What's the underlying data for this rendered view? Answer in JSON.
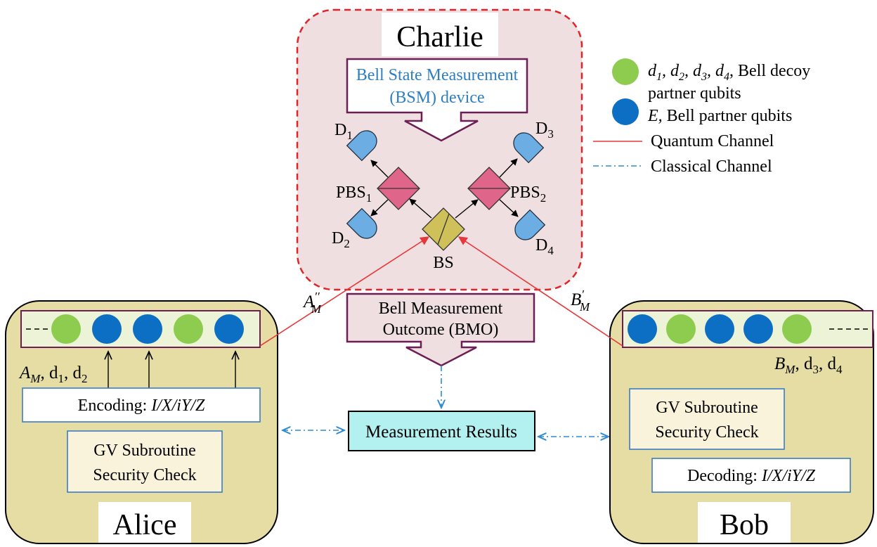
{
  "charlie": {
    "name": "Charlie",
    "bsm_line1": "Bell State Measurement",
    "bsm_line2": "(BSM) device",
    "det1": "D",
    "det1_sub": "1",
    "det2": "D",
    "det2_sub": "2",
    "det3": "D",
    "det3_sub": "3",
    "det4": "D",
    "det4_sub": "4",
    "pbs1": "PBS",
    "pbs1_sub": "1",
    "pbs2": "PBS",
    "pbs2_sub": "2",
    "bs": "BS"
  },
  "bmo": {
    "line1": "Bell Measurement",
    "line2": "Outcome (BMO)"
  },
  "results": {
    "label": "Measurement Results"
  },
  "alice": {
    "name": "Alice",
    "channel_label": "A",
    "channel_sup": "′′",
    "channel_sub": "M",
    "qubits_label_a": "A",
    "qubits_label_a_sub": "M",
    "qubits_label_rest1": ", d",
    "qubits_label_rest1_sub": "1",
    "qubits_label_rest2": ", d",
    "qubits_label_rest2_sub": "2",
    "encoding_prefix": "Encoding: ",
    "encoding_ops": "I/X/iY/Z",
    "gv_line1": "GV Subroutine",
    "gv_line2": "Security Check",
    "qubits": [
      "green",
      "blue",
      "blue",
      "green",
      "blue"
    ]
  },
  "bob": {
    "name": "Bob",
    "channel_label": "B",
    "channel_sup": "′",
    "channel_sub": "M",
    "qubits_label_b": "B",
    "qubits_label_b_sub": "M",
    "qubits_label_rest1": ", d",
    "qubits_label_rest1_sub": "3",
    "qubits_label_rest2": ", d",
    "qubits_label_rest2_sub": "4",
    "decoding_prefix": "Decoding: ",
    "decoding_ops": "I/X/iY/Z",
    "gv_line1": "GV Subroutine",
    "gv_line2": "Security Check",
    "qubits": [
      "blue",
      "green",
      "blue",
      "blue",
      "green"
    ]
  },
  "legend": {
    "green_line1_d1": "d",
    "green_line1_d1_sub": "1",
    "green_line1_d2": ", d",
    "green_line1_d2_sub": "2",
    "green_line1_d3": ", d",
    "green_line1_d3_sub": "3",
    "green_line1_d4": ", d",
    "green_line1_d4_sub": "4",
    "green_line1_rest": ", Bell decoy",
    "green_line2": "partner qubits",
    "blue_italic": "E,",
    "blue_rest": " Bell partner qubits",
    "quantum": "Quantum Channel",
    "classical": "Classical Channel"
  },
  "colors": {
    "green_qubit": "#8dcc4f",
    "blue_qubit": "#0c6fc4",
    "quantum_line": "#e8373a",
    "classical_line": "#2e8bd0",
    "party_box": "#e5dda4",
    "charlie_box": "#efdfe0",
    "results_box": "#b3f1f1",
    "pbs_fill": "#e0658a",
    "bs_fill": "#cfc05a",
    "detector": "#6caee3"
  }
}
